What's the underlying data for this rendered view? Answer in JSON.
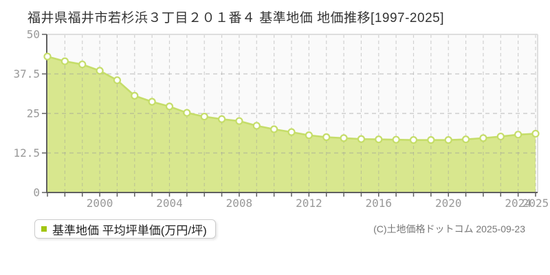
{
  "title": "福井県福井市若杉浜３丁目２０１番４ 基準地価 地価推移[1997-2025]",
  "legend": {
    "label": "基準地価 平均坪単価(万円/坪)"
  },
  "copyright": "(C)土地価格ドットコム 2025-09-23",
  "chart_data": {
    "type": "area",
    "title": "福井県福井市若杉浜３丁目２０１番４ 基準地価 地価推移[1997-2025]",
    "x": [
      1997,
      1998,
      1999,
      2000,
      2001,
      2002,
      2003,
      2004,
      2005,
      2006,
      2007,
      2008,
      2009,
      2010,
      2011,
      2012,
      2013,
      2014,
      2015,
      2016,
      2017,
      2018,
      2019,
      2020,
      2021,
      2022,
      2023,
      2024,
      2025
    ],
    "series": [
      {
        "name": "基準地価 平均坪単価(万円/坪)",
        "values": [
          43.0,
          41.5,
          40.5,
          38.5,
          35.5,
          30.6,
          28.7,
          27.2,
          25.2,
          24.0,
          23.2,
          22.6,
          21.1,
          20.0,
          19.1,
          18.1,
          17.5,
          17.2,
          16.9,
          16.8,
          16.7,
          16.6,
          16.6,
          16.6,
          16.8,
          17.2,
          17.7,
          18.3,
          18.6
        ]
      }
    ],
    "xlabel": "",
    "ylabel": "",
    "ylim": [
      0,
      50
    ],
    "yticks": [
      0,
      12.5,
      25,
      37.5,
      50
    ],
    "ytick_labels": [
      "0",
      "12.5",
      "25",
      "37.5",
      "50"
    ],
    "xtick_labels": [
      "2000",
      "2004",
      "2008",
      "2012",
      "2016",
      "2020",
      "2024",
      "2025"
    ],
    "grid": "dashed",
    "legend_position": "bottom-left",
    "colors": {
      "area_fill": "#d8e78e",
      "line": "#c5dd69",
      "marker_fill": "#ffffff",
      "marker_ring": "#c5dd69",
      "legend_marker": "#a2c511",
      "grid": "#9a9a9a",
      "plot_border": "#dedede",
      "axis": "#5f5f5f",
      "tick_label": "#999999",
      "plot_bg": "#fafafa"
    }
  }
}
